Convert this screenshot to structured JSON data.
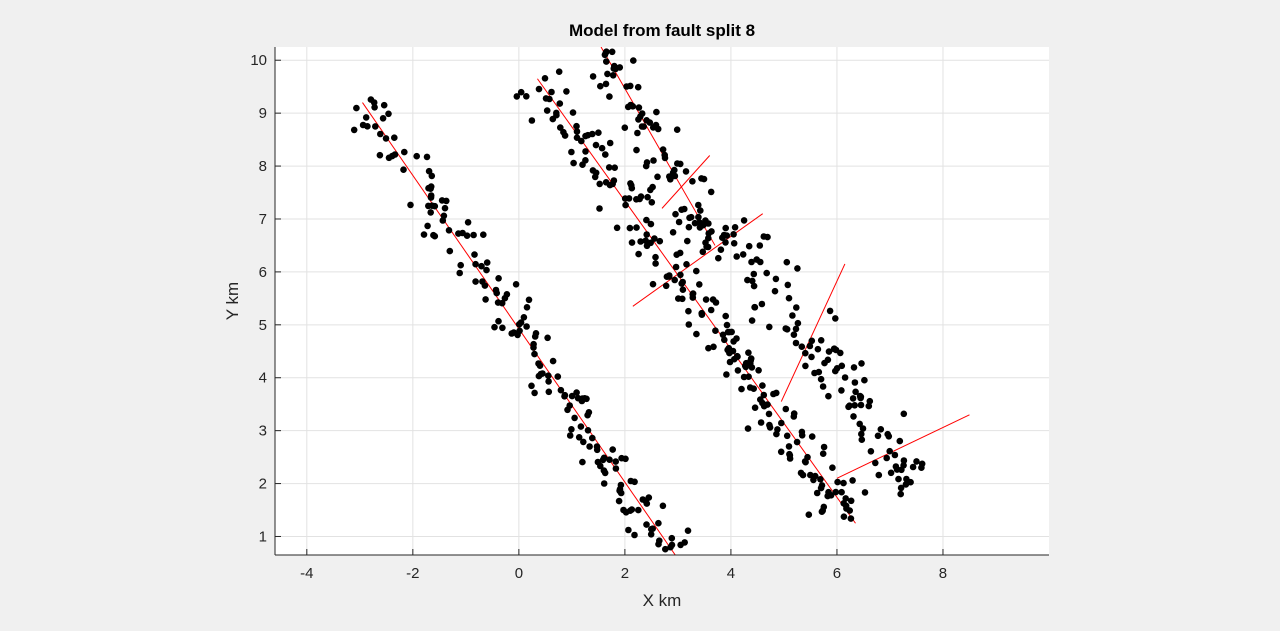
{
  "chart_data": {
    "type": "scatter",
    "title": "Model from fault split 8",
    "xlabel": "X km",
    "ylabel": "Y km",
    "xlim": [
      -4.6,
      10
    ],
    "ylim": [
      0.65,
      10.25
    ],
    "xticks": [
      -4,
      -2,
      0,
      2,
      4,
      6,
      8
    ],
    "yticks": [
      1,
      2,
      3,
      4,
      5,
      6,
      7,
      8,
      9,
      10
    ],
    "grid": true,
    "background": "#ffffff",
    "figure_background": "#f0f0f0",
    "point_color": "#000000",
    "line_color": "#ff0000",
    "fault_lines": [
      {
        "x": [
          -2.95,
          2.95
        ],
        "y": [
          9.2,
          0.65
        ]
      },
      {
        "x": [
          0.35,
          6.35
        ],
        "y": [
          9.65,
          1.25
        ]
      },
      {
        "x": [
          1.55,
          3.7
        ],
        "y": [
          10.25,
          6.5
        ]
      },
      {
        "x": [
          2.7,
          3.6
        ],
        "y": [
          7.2,
          8.2
        ]
      },
      {
        "x": [
          2.15,
          4.6
        ],
        "y": [
          5.35,
          7.1
        ]
      },
      {
        "x": [
          4.95,
          6.15
        ],
        "y": [
          3.55,
          6.15
        ]
      },
      {
        "x": [
          6.0,
          8.5
        ],
        "y": [
          2.1,
          3.3
        ]
      }
    ],
    "point_clusters": [
      {
        "x": [
          -2.95,
          2.95
        ],
        "y": [
          9.2,
          0.65
        ],
        "n": 175,
        "spread": 0.2
      },
      {
        "x": [
          0.35,
          6.3
        ],
        "y": [
          9.65,
          1.3
        ],
        "n": 210,
        "spread": 0.24
      },
      {
        "x": [
          1.55,
          3.75
        ],
        "y": [
          10.1,
          6.5
        ],
        "n": 85,
        "spread": 0.22
      },
      {
        "x": [
          3.85,
          7.5
        ],
        "y": [
          6.8,
          1.9
        ],
        "n": 115,
        "spread": 0.28
      }
    ]
  }
}
